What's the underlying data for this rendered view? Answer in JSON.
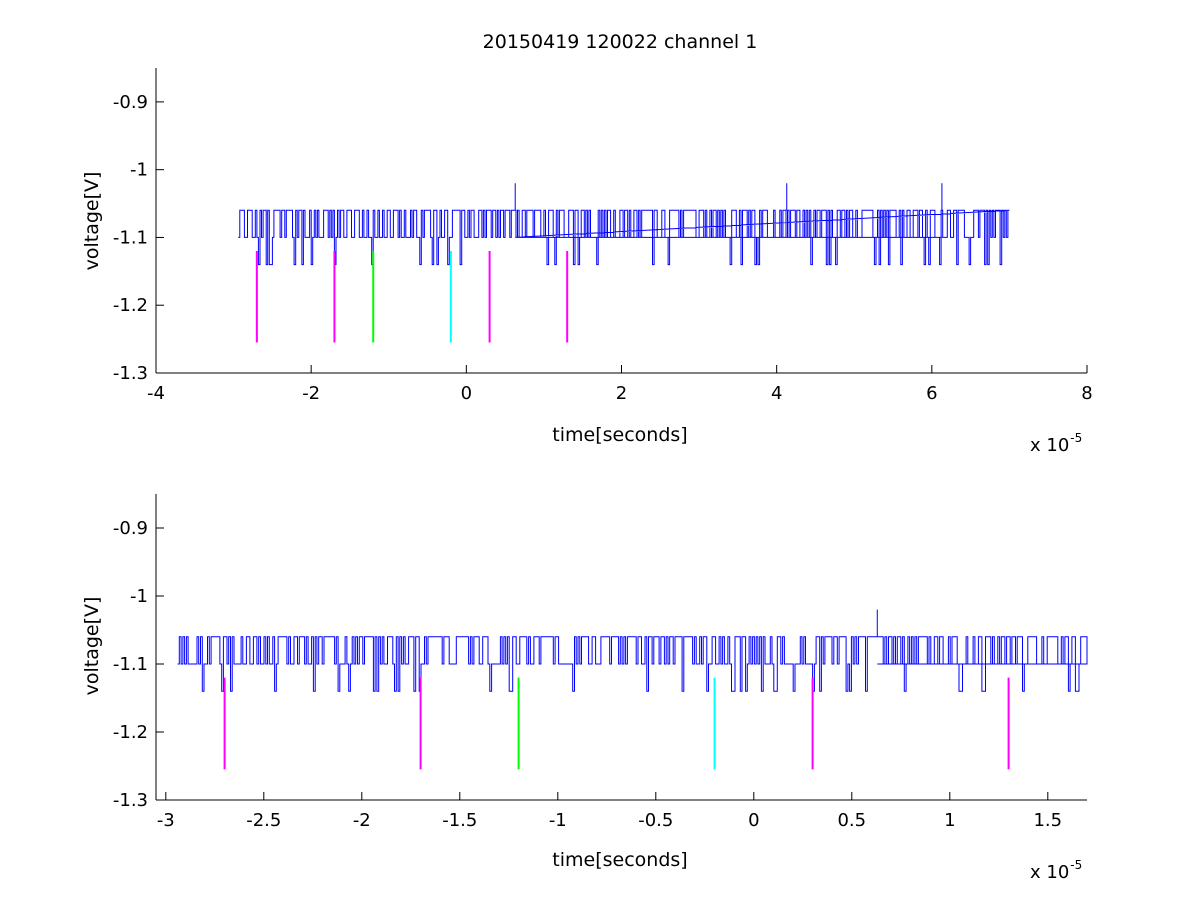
{
  "chart_data": [
    {
      "type": "line",
      "title": "20150419 120022 channel 1",
      "xlabel": "time[seconds]",
      "ylabel": "voltage[V]",
      "x_exponent": "x 10",
      "x_exponent_power": "-5",
      "xlim": [
        -4,
        8
      ],
      "ylim": [
        -1.3,
        -0.85
      ],
      "xticks": [
        -4,
        -2,
        0,
        2,
        4,
        6,
        8
      ],
      "xtick_labels": [
        "-4",
        "-2",
        "0",
        "2",
        "4",
        "6",
        "8"
      ],
      "yticks": [
        -1.3,
        -1.2,
        -1.1,
        -1.0,
        -0.9
      ],
      "ytick_labels": [
        "-1.3",
        "-1.2",
        "-1.1",
        "-1",
        "-0.9"
      ],
      "series": [
        {
          "color": "#0000ff",
          "x_range": [
            -2.94,
            7.0
          ],
          "baseline": -1.1,
          "levels": [
            -1.14,
            -1.1,
            -1.06,
            -1.02
          ],
          "spikes": [
            [
              0.63,
              -1.02
            ],
            [
              4.13,
              -1.02
            ],
            [
              6.13,
              -1.02
            ]
          ]
        }
      ],
      "markers": [
        {
          "x": -2.7,
          "y_top": -1.12,
          "y_bottom": -1.255,
          "color": "#ff00ff"
        },
        {
          "x": -1.7,
          "y_top": -1.12,
          "y_bottom": -1.255,
          "color": "#ff00ff"
        },
        {
          "x": -1.2,
          "y_top": -1.12,
          "y_bottom": -1.255,
          "color": "#00ff00"
        },
        {
          "x": -0.2,
          "y_top": -1.12,
          "y_bottom": -1.255,
          "color": "#00ffff"
        },
        {
          "x": 0.3,
          "y_top": -1.12,
          "y_bottom": -1.255,
          "color": "#ff00ff"
        },
        {
          "x": 1.3,
          "y_top": -1.12,
          "y_bottom": -1.255,
          "color": "#ff00ff"
        }
      ],
      "grid": false
    },
    {
      "type": "line",
      "title": "",
      "xlabel": "time[seconds]",
      "ylabel": "voltage[V]",
      "x_exponent": "x 10",
      "x_exponent_power": "-5",
      "xlim": [
        -3.05,
        1.7
      ],
      "ylim": [
        -1.3,
        -0.85
      ],
      "xticks": [
        -3,
        -2.5,
        -2,
        -1.5,
        -1,
        -0.5,
        0,
        0.5,
        1,
        1.5
      ],
      "xtick_labels": [
        "-3",
        "-2.5",
        "-2",
        "-1.5",
        "-1",
        "-0.5",
        "0",
        "0.5",
        "1",
        "1.5"
      ],
      "yticks": [
        -1.3,
        -1.2,
        -1.1,
        -1.0,
        -0.9
      ],
      "ytick_labels": [
        "-1.3",
        "-1.2",
        "-1.1",
        "-1",
        "-0.9"
      ],
      "series": [
        {
          "color": "#0000ff",
          "x_range": [
            -2.94,
            1.7
          ],
          "baseline": -1.1,
          "levels": [
            -1.14,
            -1.1,
            -1.06,
            -1.02
          ],
          "spikes": [
            [
              0.63,
              -1.02
            ]
          ]
        }
      ],
      "markers": [
        {
          "x": -2.7,
          "y_top": -1.12,
          "y_bottom": -1.255,
          "color": "#ff00ff"
        },
        {
          "x": -1.7,
          "y_top": -1.12,
          "y_bottom": -1.255,
          "color": "#ff00ff"
        },
        {
          "x": -1.2,
          "y_top": -1.12,
          "y_bottom": -1.255,
          "color": "#00ff00"
        },
        {
          "x": -0.2,
          "y_top": -1.12,
          "y_bottom": -1.255,
          "color": "#00ffff"
        },
        {
          "x": 0.3,
          "y_top": -1.12,
          "y_bottom": -1.255,
          "color": "#ff00ff"
        },
        {
          "x": 1.3,
          "y_top": -1.12,
          "y_bottom": -1.255,
          "color": "#ff00ff"
        }
      ],
      "grid": false
    }
  ]
}
